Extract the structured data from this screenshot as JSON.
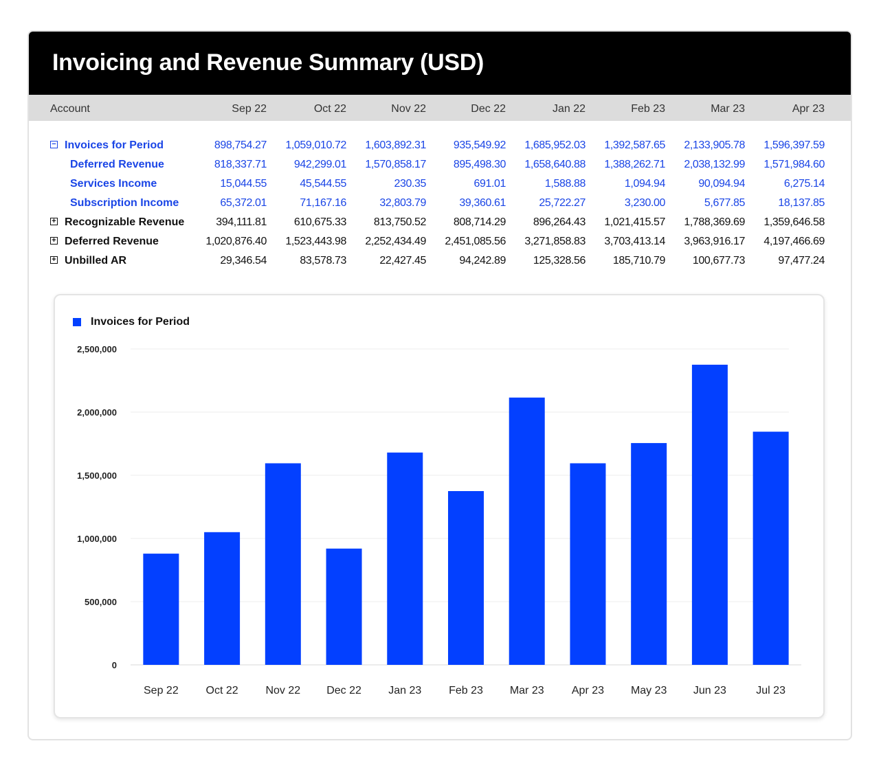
{
  "title": "Invoicing and Revenue Summary (USD)",
  "table": {
    "account_header": "Account",
    "columns": [
      "Sep 22",
      "Oct 22",
      "Nov 22",
      "Dec 22",
      "Jan 22",
      "Feb 23",
      "Mar 23",
      "Apr 23"
    ],
    "rows": [
      {
        "label": "Invoices for Period",
        "toggle": "−",
        "level": 0,
        "color": "#1a45e6",
        "values": [
          "898,754.27",
          "1,059,010.72",
          "1,603,892.31",
          "935,549.92",
          "1,685,952.03",
          "1,392,587.65",
          "2,133,905.78",
          "1,596,397.59"
        ]
      },
      {
        "label": "Deferred Revenue",
        "toggle": "",
        "level": 1,
        "color": "#1a45e6",
        "values": [
          "818,337.71",
          "942,299.01",
          "1,570,858.17",
          "895,498.30",
          "1,658,640.88",
          "1,388,262.71",
          "2,038,132.99",
          "1,571,984.60"
        ]
      },
      {
        "label": "Services Income",
        "toggle": "",
        "level": 1,
        "color": "#1a45e6",
        "values": [
          "15,044.55",
          "45,544.55",
          "230.35",
          "691.01",
          "1,588.88",
          "1,094.94",
          "90,094.94",
          "6,275.14"
        ]
      },
      {
        "label": "Subscription Income",
        "toggle": "",
        "level": 1,
        "color": "#1a45e6",
        "values": [
          "65,372.01",
          "71,167.16",
          "32,803.79",
          "39,360.61",
          "25,722.27",
          "3,230.00",
          "5,677.85",
          "18,137.85"
        ]
      },
      {
        "label": "Recognizable Revenue",
        "toggle": "+",
        "level": 0,
        "color": "#111111",
        "values": [
          "394,111.81",
          "610,675.33",
          "813,750.52",
          "808,714.29",
          "896,264.43",
          "1,021,415.57",
          "1,788,369.69",
          "1,359,646.58"
        ]
      },
      {
        "label": "Deferred Revenue",
        "toggle": "+",
        "level": 0,
        "color": "#111111",
        "values": [
          "1,020,876.40",
          "1,523,443.98",
          "2,252,434.49",
          "2,451,085.56",
          "3,271,858.83",
          "3,703,413.14",
          "3,963,916.17",
          "4,197,466.69"
        ]
      },
      {
        "label": "Unbilled AR",
        "toggle": "+",
        "level": 0,
        "color": "#111111",
        "values": [
          "29,346.54",
          "83,578.73",
          "22,427.45",
          "94,242.89",
          "125,328.56",
          "185,710.79",
          "100,677.73",
          "97,477.24"
        ]
      }
    ]
  },
  "chart_data": {
    "type": "bar",
    "title": "",
    "xlabel": "",
    "ylabel": "",
    "legend": "top-left",
    "grid": true,
    "bar_color": "#0340ff",
    "categories": [
      "Sep 22",
      "Oct 22",
      "Nov 22",
      "Dec 22",
      "Jan 23",
      "Feb 23",
      "Mar 23",
      "Apr 23",
      "May 23",
      "Jun 23",
      "Jul 23"
    ],
    "series": [
      {
        "name": "Invoices for Period",
        "values": [
          880000,
          1050000,
          1595000,
          920000,
          1680000,
          1375000,
          2115000,
          1595000,
          1755000,
          2375000,
          1845000
        ]
      }
    ],
    "ylim": [
      0,
      2500000
    ],
    "yticks": [
      0,
      500000,
      1000000,
      1500000,
      2000000,
      2500000
    ],
    "ytick_labels": [
      "0",
      "500,000",
      "1,000,000",
      "1,500,000",
      "2,000,000",
      "2,500,000"
    ]
  }
}
